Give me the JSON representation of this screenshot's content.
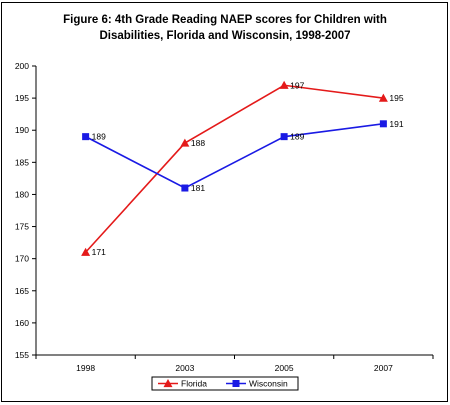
{
  "chart_data": {
    "type": "line",
    "title_line1": "Figure 6: 4th Grade Reading NAEP scores for Children with",
    "title_line2": "Disabilities, Florida and Wisconsin, 1998-2007",
    "categories": [
      "1998",
      "2003",
      "2005",
      "2007"
    ],
    "ylim": [
      155,
      200
    ],
    "ystep": 5,
    "grid": false,
    "legend_position": "bottom",
    "series": [
      {
        "name": "Florida",
        "values": [
          171,
          188,
          197,
          195
        ],
        "color": "#e41a1a",
        "marker": "triangle"
      },
      {
        "name": "Wisconsin",
        "values": [
          189,
          181,
          189,
          191
        ],
        "color": "#1a1ae4",
        "marker": "square"
      }
    ]
  }
}
